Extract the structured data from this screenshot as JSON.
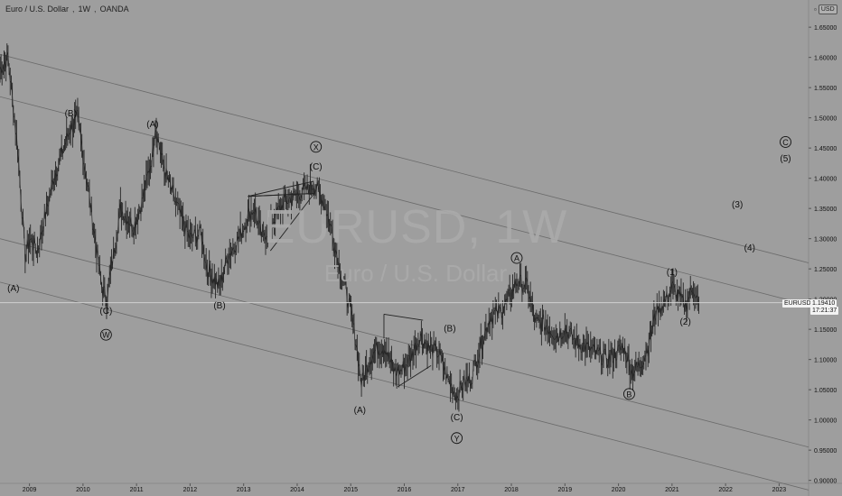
{
  "header": {
    "symbol_name": "Euro / U.S. Dollar",
    "interval": "1W",
    "exchange": "OANDA"
  },
  "currency": {
    "label": "USD"
  },
  "watermark": {
    "symbol": "EURUSD, 1W",
    "description": "Euro / U.S. Dollar"
  },
  "price_label": {
    "symbol": "EURUSD",
    "value": "1.19410",
    "countdown": "17:21:37"
  },
  "colors": {
    "background": "#9e9e9e",
    "price_line": "#cfcfcf",
    "candles": "#262626",
    "channel": "#6b6b6b",
    "text": "#111111"
  },
  "chart_data": {
    "type": "line",
    "title": "Euro / U.S. Dollar, 1W, OANDA",
    "xlabel": "",
    "ylabel": "",
    "xlim": [
      2008.45,
      2023.55
    ],
    "ylim": [
      0.895,
      1.695
    ],
    "x_ticks": [
      2009,
      2010,
      2011,
      2012,
      2013,
      2014,
      2015,
      2016,
      2017,
      2018,
      2019,
      2020,
      2021,
      2022,
      2023
    ],
    "y_ticks": [
      "1.65000",
      "1.60000",
      "1.55000",
      "1.50000",
      "1.45000",
      "1.40000",
      "1.35000",
      "1.30000",
      "1.25000",
      "1.20000",
      "1.15000",
      "1.10000",
      "1.05000",
      "1.00000",
      "0.95000",
      "0.90000"
    ],
    "grid": false,
    "last_price": 1.1941,
    "series": [
      {
        "x": [
          2008.45,
          2008.6,
          2008.78,
          2008.92,
          2009.0,
          2009.15,
          2009.45,
          2009.75,
          2009.9,
          2010.1,
          2010.35,
          2010.44,
          2010.7,
          2010.95,
          2011.1,
          2011.3,
          2011.35,
          2011.5,
          2011.65,
          2011.85,
          2012.0,
          2012.2,
          2012.32,
          2012.55,
          2012.7,
          2012.9,
          2013.1,
          2013.2,
          2013.35,
          2013.55,
          2013.75,
          2013.95,
          2014.15,
          2014.3,
          2014.45,
          2014.6,
          2014.8,
          2014.95,
          2015.1,
          2015.2,
          2015.35,
          2015.5,
          2015.65,
          2015.8,
          2015.92,
          2016.1,
          2016.3,
          2016.45,
          2016.65,
          2016.8,
          2016.98,
          2017.1,
          2017.25,
          2017.45,
          2017.6,
          2017.8,
          2017.95,
          2018.1,
          2018.3,
          2018.45,
          2018.6,
          2018.85,
          2019.0,
          2019.2,
          2019.4,
          2019.6,
          2019.8,
          2019.95,
          2020.1,
          2020.25,
          2020.4,
          2020.55,
          2020.7,
          2020.9,
          2021.0,
          2021.15,
          2021.25,
          2021.4,
          2021.5
        ],
        "y": [
          1.58,
          1.6,
          1.45,
          1.27,
          1.3,
          1.28,
          1.4,
          1.48,
          1.5,
          1.38,
          1.22,
          1.2,
          1.35,
          1.32,
          1.36,
          1.44,
          1.49,
          1.42,
          1.38,
          1.33,
          1.3,
          1.31,
          1.25,
          1.22,
          1.27,
          1.3,
          1.34,
          1.35,
          1.3,
          1.33,
          1.36,
          1.37,
          1.38,
          1.39,
          1.37,
          1.33,
          1.25,
          1.2,
          1.13,
          1.06,
          1.1,
          1.12,
          1.12,
          1.08,
          1.08,
          1.1,
          1.14,
          1.12,
          1.11,
          1.07,
          1.04,
          1.06,
          1.07,
          1.13,
          1.17,
          1.18,
          1.2,
          1.23,
          1.22,
          1.16,
          1.16,
          1.14,
          1.15,
          1.13,
          1.12,
          1.11,
          1.1,
          1.11,
          1.12,
          1.08,
          1.09,
          1.12,
          1.18,
          1.2,
          1.22,
          1.2,
          1.19,
          1.22,
          1.19
        ]
      }
    ],
    "channels": [
      {
        "x": [
          2008.45,
          2023.55
        ],
        "y": [
          1.605,
          1.26
        ]
      },
      {
        "x": [
          2008.45,
          2023.55
        ],
        "y": [
          1.535,
          1.19
        ]
      },
      {
        "x": [
          2008.45,
          2023.55
        ],
        "y": [
          1.3,
          0.955
        ]
      },
      {
        "x": [
          2008.45,
          2023.55
        ],
        "y": [
          1.228,
          0.884
        ]
      }
    ],
    "triangles": [
      {
        "x": [
          2013.08,
          2014.3,
          2014.32,
          2013.08
        ],
        "y": [
          1.37,
          1.395,
          1.375,
          1.37
        ]
      },
      {
        "x": [
          2013.08,
          2014.32
        ],
        "y": [
          1.37,
          1.375
        ]
      },
      {
        "x": [
          2014.32,
          2013.5
        ],
        "y": [
          1.375,
          1.28
        ]
      },
      {
        "x": [
          2015.62,
          2016.35
        ],
        "y": [
          1.175,
          1.165
        ]
      },
      {
        "x": [
          2015.62,
          2015.62
        ],
        "y": [
          1.175,
          1.135
        ]
      },
      {
        "x": [
          2015.88,
          2016.5
        ],
        "y": [
          1.055,
          1.09
        ]
      }
    ],
    "annotations": [
      {
        "text": "(A)",
        "x": 2008.7,
        "y": 1.218,
        "circled": false
      },
      {
        "text": "(B)",
        "x": 2009.77,
        "y": 1.508,
        "circled": false
      },
      {
        "text": "(C)",
        "x": 2010.43,
        "y": 1.181,
        "circled": false
      },
      {
        "text": "W",
        "x": 2010.43,
        "y": 1.141,
        "circled": true
      },
      {
        "text": "(A)",
        "x": 2011.3,
        "y": 1.49,
        "circled": false
      },
      {
        "text": "(B)",
        "x": 2012.55,
        "y": 1.19,
        "circled": false
      },
      {
        "text": "X",
        "x": 2014.35,
        "y": 1.452,
        "circled": true
      },
      {
        "text": "(C)",
        "x": 2014.35,
        "y": 1.42,
        "circled": false
      },
      {
        "text": "(A)",
        "x": 2015.17,
        "y": 1.017,
        "circled": false
      },
      {
        "text": "(B)",
        "x": 2016.85,
        "y": 1.152,
        "circled": false
      },
      {
        "text": "(C)",
        "x": 2016.98,
        "y": 1.005,
        "circled": false
      },
      {
        "text": "Y",
        "x": 2016.98,
        "y": 0.97,
        "circled": true
      },
      {
        "text": "A",
        "x": 2018.1,
        "y": 1.268,
        "circled": true
      },
      {
        "text": "B",
        "x": 2020.2,
        "y": 1.043,
        "circled": true
      },
      {
        "text": "(1)",
        "x": 2021.0,
        "y": 1.245,
        "circled": false
      },
      {
        "text": "(2)",
        "x": 2021.25,
        "y": 1.163,
        "circled": false
      },
      {
        "text": "(3)",
        "x": 2022.22,
        "y": 1.357,
        "circled": false
      },
      {
        "text": "(4)",
        "x": 2022.45,
        "y": 1.285,
        "circled": false
      },
      {
        "text": "C",
        "x": 2023.12,
        "y": 1.46,
        "circled": true
      },
      {
        "text": "(5)",
        "x": 2023.12,
        "y": 1.433,
        "circled": false
      }
    ]
  }
}
